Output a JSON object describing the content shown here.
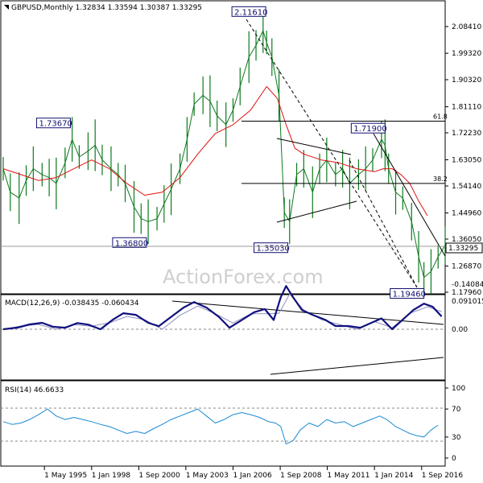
{
  "chart_data": [
    {
      "type": "candlestick",
      "header": "GBPUSD,Monthly  1.32834 1.33594 1.30387 1.33295",
      "price_label": "1.33295",
      "ylim": [
        1.16,
        2.16
      ],
      "y_ticks": [
        "2.08410",
        "1.99320",
        "1.90320",
        "1.81110",
        "1.72230",
        "1.63050",
        "1.54140",
        "1.44960",
        "1.36050",
        "1.26870",
        "1.17960"
      ],
      "x_ticks": [
        "1 May 1995",
        "1 Jan 1998",
        "1 Sep 2000",
        "1 May 2003",
        "1 Jan 2006",
        "1 Sep 2008",
        "1 May 2011",
        "1 Jan 2014",
        "1 Sep 2016"
      ],
      "annotations": [
        {
          "text": "2.11610",
          "date": 2007.85,
          "value": 2.1161
        },
        {
          "text": "1.73670",
          "date": 1996.8,
          "value": 1.7367
        },
        {
          "text": "1.36800",
          "date": 2001.1,
          "value": 1.368
        },
        {
          "text": "1.35030",
          "date": 2009.1,
          "value": 1.3503
        },
        {
          "text": "1.71900",
          "date": 2014.6,
          "value": 1.719
        },
        {
          "text": "1.19460",
          "date": 2016.8,
          "value": 1.1946
        }
      ],
      "levels": [
        {
          "label": "61.8",
          "value": 1.762
        },
        {
          "label": "38.2",
          "value": 1.55
        }
      ],
      "watermark": "ActionForex.com",
      "series": [
        {
          "name": "price",
          "x": [
            1993.0,
            1993.4,
            1993.9,
            1994.3,
            1994.7,
            1995.2,
            1995.6,
            1996.0,
            1996.5,
            1996.9,
            1997.3,
            1997.8,
            1998.2,
            1998.6,
            1999.1,
            1999.5,
            1999.9,
            2000.4,
            2000.8,
            2001.2,
            2001.7,
            2002.1,
            2002.5,
            2003.0,
            2003.4,
            2003.8,
            2004.3,
            2004.7,
            2005.1,
            2005.6,
            2006.0,
            2006.4,
            2006.9,
            2007.3,
            2007.7,
            2007.9,
            2008.2,
            2008.6,
            2008.9,
            2009.2,
            2009.6,
            2010.0,
            2010.5,
            2010.9,
            2011.3,
            2011.8,
            2012.2,
            2012.6,
            2013.1,
            2013.5,
            2013.9,
            2014.4,
            2014.6,
            2014.8,
            2015.2,
            2015.6,
            2016.1,
            2016.5,
            2016.8,
            2017.2,
            2017.6,
            2018.0
          ],
          "y": [
            1.6,
            1.52,
            1.5,
            1.56,
            1.6,
            1.58,
            1.57,
            1.55,
            1.62,
            1.7,
            1.64,
            1.66,
            1.68,
            1.63,
            1.6,
            1.58,
            1.55,
            1.47,
            1.43,
            1.42,
            1.43,
            1.48,
            1.53,
            1.6,
            1.7,
            1.82,
            1.85,
            1.83,
            1.78,
            1.75,
            1.8,
            1.88,
            1.98,
            2.02,
            2.07,
            2.03,
            1.98,
            1.85,
            1.45,
            1.42,
            1.58,
            1.6,
            1.52,
            1.6,
            1.63,
            1.58,
            1.6,
            1.55,
            1.58,
            1.6,
            1.63,
            1.7,
            1.68,
            1.6,
            1.52,
            1.5,
            1.42,
            1.3,
            1.23,
            1.25,
            1.3,
            1.34
          ]
        },
        {
          "name": "ma",
          "x": [
            1993.0,
            1994.0,
            1995.0,
            1996.0,
            1997.0,
            1998.0,
            1999.0,
            2000.0,
            2001.0,
            2002.0,
            2003.0,
            2004.0,
            2005.0,
            2006.0,
            2007.0,
            2007.9,
            2008.5,
            2009.0,
            2009.5,
            2010.0,
            2011.0,
            2012.0,
            2013.0,
            2014.0,
            2014.5,
            2015.0,
            2015.5,
            2016.0,
            2016.5,
            2017.0
          ],
          "y": [
            1.6,
            1.58,
            1.56,
            1.57,
            1.6,
            1.63,
            1.6,
            1.55,
            1.51,
            1.52,
            1.57,
            1.65,
            1.72,
            1.75,
            1.8,
            1.88,
            1.84,
            1.75,
            1.67,
            1.65,
            1.63,
            1.62,
            1.6,
            1.59,
            1.6,
            1.6,
            1.58,
            1.55,
            1.49,
            1.44
          ]
        }
      ]
    },
    {
      "type": "line",
      "header": "MACD(12,26,9) -0.038435 -0.060434",
      "ylim": [
        -0.1408,
        0.091
      ],
      "y_ticks": [
        "0.091015",
        "0.00",
        "-0.140843"
      ],
      "series": [
        {
          "name": "macd",
          "x": [
            1993.0,
            1993.8,
            1994.5,
            1995.2,
            1995.8,
            1996.5,
            1997.2,
            1997.8,
            1998.5,
            1999.2,
            1999.8,
            2000.5,
            2001.2,
            2001.8,
            2002.5,
            2003.2,
            2003.8,
            2004.5,
            2005.2,
            2005.8,
            2006.5,
            2007.2,
            2007.8,
            2008.3,
            2008.7,
            2009.0,
            2009.4,
            2009.9,
            2010.5,
            2011.2,
            2011.8,
            2012.5,
            2013.2,
            2013.8,
            2014.4,
            2015.0,
            2015.6,
            2016.2,
            2016.8,
            2017.3,
            2017.8
          ],
          "y": [
            0.0,
            -0.005,
            -0.015,
            -0.02,
            -0.008,
            0.005,
            0.02,
            0.015,
            0.0,
            -0.03,
            -0.05,
            -0.045,
            -0.02,
            0.01,
            0.04,
            0.07,
            0.088,
            0.07,
            0.04,
            0.005,
            0.03,
            0.055,
            0.065,
            0.03,
            -0.1,
            -0.135,
            -0.1,
            -0.06,
            -0.045,
            -0.03,
            -0.01,
            -0.01,
            0.005,
            0.02,
            0.035,
            0.0,
            -0.03,
            -0.06,
            -0.08,
            -0.07,
            -0.04
          ]
        },
        {
          "name": "signal",
          "x": [
            1993.0,
            1994.0,
            1995.0,
            1996.0,
            1997.0,
            1998.0,
            1999.0,
            2000.0,
            2001.0,
            2002.0,
            2003.0,
            2004.0,
            2005.0,
            2006.0,
            2007.0,
            2008.0,
            2008.6,
            2009.2,
            2010.0,
            2011.0,
            2012.0,
            2013.0,
            2014.0,
            2015.0,
            2016.0,
            2017.0,
            2017.8
          ],
          "y": [
            0.0,
            -0.01,
            -0.015,
            0.0,
            0.015,
            0.01,
            -0.02,
            -0.04,
            -0.03,
            0.0,
            0.045,
            0.075,
            0.05,
            0.02,
            0.05,
            0.05,
            -0.05,
            -0.11,
            -0.06,
            -0.03,
            -0.015,
            0.0,
            0.025,
            0.005,
            -0.05,
            -0.07,
            -0.055
          ]
        }
      ]
    },
    {
      "type": "line",
      "header": "RSI(14) 46.6633",
      "ylim": [
        0,
        100
      ],
      "y_ticks": [
        "100",
        "70",
        "30",
        "0"
      ],
      "series": [
        {
          "name": "rsi",
          "x": [
            1993.0,
            1993.5,
            1994.0,
            1994.5,
            1995.0,
            1995.5,
            1996.0,
            1996.5,
            1997.0,
            1997.5,
            1998.0,
            1998.5,
            1999.0,
            1999.5,
            2000.0,
            2000.5,
            2001.0,
            2001.5,
            2002.0,
            2002.5,
            2003.0,
            2003.5,
            2004.0,
            2004.5,
            2005.0,
            2005.5,
            2006.0,
            2006.5,
            2007.0,
            2007.5,
            2008.0,
            2008.4,
            2008.7,
            2009.0,
            2009.4,
            2009.8,
            2010.3,
            2010.8,
            2011.3,
            2011.8,
            2012.3,
            2012.8,
            2013.3,
            2013.8,
            2014.3,
            2014.7,
            2015.2,
            2015.6,
            2016.0,
            2016.4,
            2016.8,
            2017.2,
            2017.6
          ],
          "y": [
            52,
            48,
            50,
            55,
            62,
            70,
            60,
            55,
            58,
            55,
            52,
            48,
            45,
            40,
            35,
            38,
            35,
            42,
            48,
            55,
            60,
            65,
            70,
            60,
            50,
            55,
            62,
            65,
            62,
            58,
            52,
            50,
            45,
            20,
            25,
            40,
            50,
            45,
            55,
            50,
            52,
            45,
            50,
            55,
            60,
            55,
            45,
            40,
            35,
            32,
            30,
            40,
            47
          ]
        }
      ]
    }
  ]
}
